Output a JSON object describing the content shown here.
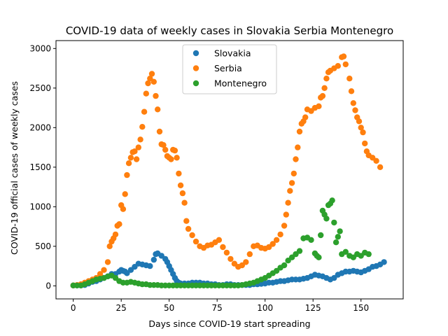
{
  "chart_data": {
    "type": "scatter",
    "title": "COVID-19 data of weekly cases in Slovakia Serbia Montenegro",
    "xlabel": "Days since COVID-19 start spreading",
    "ylabel": "COVID-19 official cases of weekly cases",
    "xlim": [
      -9,
      172
    ],
    "ylim": [
      -165,
      3100
    ],
    "xticks": [
      0,
      25,
      50,
      75,
      100,
      125,
      150
    ],
    "yticks": [
      0,
      500,
      1000,
      1500,
      2000,
      2500,
      3000
    ],
    "grid": false,
    "legend_position": "top-center",
    "series": [
      {
        "name": "Slovakia",
        "color": "#1f77b4",
        "points": [
          [
            0,
            5
          ],
          [
            2,
            5
          ],
          [
            4,
            5
          ],
          [
            6,
            10
          ],
          [
            8,
            30
          ],
          [
            10,
            50
          ],
          [
            12,
            60
          ],
          [
            14,
            80
          ],
          [
            16,
            100
          ],
          [
            18,
            120
          ],
          [
            20,
            150
          ],
          [
            22,
            150
          ],
          [
            24,
            180
          ],
          [
            25,
            200
          ],
          [
            26,
            190
          ],
          [
            27,
            180
          ],
          [
            28,
            160
          ],
          [
            30,
            200
          ],
          [
            32,
            240
          ],
          [
            34,
            280
          ],
          [
            36,
            270
          ],
          [
            38,
            260
          ],
          [
            40,
            250
          ],
          [
            42,
            330
          ],
          [
            43,
            400
          ],
          [
            44,
            410
          ],
          [
            46,
            380
          ],
          [
            48,
            340
          ],
          [
            49,
            300
          ],
          [
            50,
            250
          ],
          [
            51,
            200
          ],
          [
            52,
            150
          ],
          [
            53,
            100
          ],
          [
            54,
            60
          ],
          [
            55,
            40
          ],
          [
            56,
            30
          ],
          [
            58,
            30
          ],
          [
            60,
            30
          ],
          [
            62,
            40
          ],
          [
            64,
            40
          ],
          [
            66,
            40
          ],
          [
            68,
            30
          ],
          [
            70,
            30
          ],
          [
            72,
            20
          ],
          [
            74,
            20
          ],
          [
            76,
            10
          ],
          [
            78,
            10
          ],
          [
            80,
            20
          ],
          [
            82,
            20
          ],
          [
            84,
            10
          ],
          [
            86,
            10
          ],
          [
            88,
            10
          ],
          [
            90,
            10
          ],
          [
            92,
            10
          ],
          [
            94,
            20
          ],
          [
            96,
            20
          ],
          [
            98,
            25
          ],
          [
            100,
            30
          ],
          [
            102,
            40
          ],
          [
            104,
            40
          ],
          [
            106,
            50
          ],
          [
            108,
            60
          ],
          [
            110,
            60
          ],
          [
            112,
            70
          ],
          [
            114,
            80
          ],
          [
            116,
            80
          ],
          [
            118,
            80
          ],
          [
            120,
            90
          ],
          [
            122,
            100
          ],
          [
            124,
            120
          ],
          [
            126,
            140
          ],
          [
            128,
            130
          ],
          [
            130,
            120
          ],
          [
            132,
            100
          ],
          [
            134,
            80
          ],
          [
            136,
            100
          ],
          [
            138,
            140
          ],
          [
            140,
            160
          ],
          [
            142,
            180
          ],
          [
            144,
            180
          ],
          [
            146,
            190
          ],
          [
            148,
            180
          ],
          [
            150,
            170
          ],
          [
            152,
            190
          ],
          [
            154,
            210
          ],
          [
            156,
            240
          ],
          [
            158,
            250
          ],
          [
            160,
            270
          ],
          [
            162,
            300
          ]
        ]
      },
      {
        "name": "Serbia",
        "color": "#ff7f0e",
        "points": [
          [
            0,
            5
          ],
          [
            2,
            10
          ],
          [
            4,
            20
          ],
          [
            6,
            40
          ],
          [
            8,
            60
          ],
          [
            10,
            80
          ],
          [
            12,
            100
          ],
          [
            14,
            150
          ],
          [
            16,
            200
          ],
          [
            18,
            300
          ],
          [
            19,
            500
          ],
          [
            20,
            560
          ],
          [
            21,
            600
          ],
          [
            22,
            650
          ],
          [
            23,
            760
          ],
          [
            24,
            780
          ],
          [
            25,
            1020
          ],
          [
            26,
            970
          ],
          [
            27,
            1160
          ],
          [
            28,
            1400
          ],
          [
            29,
            1550
          ],
          [
            30,
            1620
          ],
          [
            31,
            1690
          ],
          [
            32,
            1700
          ],
          [
            33,
            1600
          ],
          [
            34,
            1750
          ],
          [
            35,
            1850
          ],
          [
            36,
            2010
          ],
          [
            37,
            2200
          ],
          [
            38,
            2430
          ],
          [
            39,
            2560
          ],
          [
            40,
            2620
          ],
          [
            41,
            2680
          ],
          [
            42,
            2580
          ],
          [
            43,
            2400
          ],
          [
            44,
            2230
          ],
          [
            45,
            1950
          ],
          [
            46,
            1790
          ],
          [
            47,
            1780
          ],
          [
            48,
            1720
          ],
          [
            49,
            1640
          ],
          [
            50,
            1620
          ],
          [
            51,
            1600
          ],
          [
            52,
            1720
          ],
          [
            53,
            1710
          ],
          [
            54,
            1620
          ],
          [
            55,
            1420
          ],
          [
            56,
            1270
          ],
          [
            57,
            1170
          ],
          [
            58,
            1050
          ],
          [
            59,
            820
          ],
          [
            60,
            720
          ],
          [
            62,
            640
          ],
          [
            64,
            560
          ],
          [
            66,
            500
          ],
          [
            68,
            480
          ],
          [
            70,
            510
          ],
          [
            72,
            520
          ],
          [
            74,
            550
          ],
          [
            76,
            580
          ],
          [
            78,
            490
          ],
          [
            80,
            420
          ],
          [
            82,
            340
          ],
          [
            84,
            280
          ],
          [
            86,
            240
          ],
          [
            88,
            260
          ],
          [
            90,
            300
          ],
          [
            92,
            400
          ],
          [
            94,
            500
          ],
          [
            96,
            510
          ],
          [
            98,
            480
          ],
          [
            100,
            470
          ],
          [
            102,
            490
          ],
          [
            104,
            530
          ],
          [
            106,
            580
          ],
          [
            108,
            650
          ],
          [
            110,
            760
          ],
          [
            111,
            900
          ],
          [
            112,
            1050
          ],
          [
            113,
            1200
          ],
          [
            114,
            1300
          ],
          [
            115,
            1420
          ],
          [
            116,
            1600
          ],
          [
            117,
            1750
          ],
          [
            118,
            1950
          ],
          [
            119,
            2050
          ],
          [
            120,
            2080
          ],
          [
            121,
            2130
          ],
          [
            122,
            2230
          ],
          [
            124,
            2210
          ],
          [
            126,
            2250
          ],
          [
            128,
            2270
          ],
          [
            129,
            2380
          ],
          [
            130,
            2400
          ],
          [
            131,
            2500
          ],
          [
            132,
            2620
          ],
          [
            133,
            2700
          ],
          [
            134,
            2720
          ],
          [
            136,
            2750
          ],
          [
            138,
            2780
          ],
          [
            140,
            2890
          ],
          [
            141,
            2900
          ],
          [
            142,
            2800
          ],
          [
            144,
            2620
          ],
          [
            145,
            2460
          ],
          [
            146,
            2310
          ],
          [
            147,
            2220
          ],
          [
            148,
            2130
          ],
          [
            149,
            2080
          ],
          [
            150,
            2000
          ],
          [
            151,
            1940
          ],
          [
            152,
            1800
          ],
          [
            153,
            1700
          ],
          [
            154,
            1650
          ],
          [
            156,
            1620
          ],
          [
            158,
            1580
          ],
          [
            160,
            1500
          ]
        ]
      },
      {
        "name": "Montenegro",
        "color": "#2ca02c",
        "points": [
          [
            0,
            5
          ],
          [
            2,
            5
          ],
          [
            4,
            5
          ],
          [
            6,
            20
          ],
          [
            8,
            40
          ],
          [
            10,
            60
          ],
          [
            12,
            80
          ],
          [
            14,
            90
          ],
          [
            16,
            100
          ],
          [
            18,
            120
          ],
          [
            20,
            130
          ],
          [
            22,
            100
          ],
          [
            24,
            60
          ],
          [
            26,
            40
          ],
          [
            28,
            40
          ],
          [
            30,
            50
          ],
          [
            32,
            40
          ],
          [
            34,
            30
          ],
          [
            36,
            20
          ],
          [
            38,
            20
          ],
          [
            40,
            10
          ],
          [
            42,
            10
          ],
          [
            44,
            10
          ],
          [
            46,
            5
          ],
          [
            48,
            5
          ],
          [
            50,
            5
          ],
          [
            52,
            5
          ],
          [
            54,
            5
          ],
          [
            56,
            5
          ],
          [
            58,
            5
          ],
          [
            60,
            5
          ],
          [
            62,
            5
          ],
          [
            64,
            5
          ],
          [
            66,
            5
          ],
          [
            68,
            5
          ],
          [
            70,
            5
          ],
          [
            72,
            5
          ],
          [
            74,
            5
          ],
          [
            76,
            5
          ],
          [
            78,
            5
          ],
          [
            80,
            5
          ],
          [
            82,
            5
          ],
          [
            84,
            5
          ],
          [
            86,
            5
          ],
          [
            88,
            10
          ],
          [
            90,
            20
          ],
          [
            92,
            30
          ],
          [
            94,
            40
          ],
          [
            96,
            60
          ],
          [
            98,
            80
          ],
          [
            100,
            100
          ],
          [
            102,
            130
          ],
          [
            104,
            160
          ],
          [
            106,
            190
          ],
          [
            108,
            230
          ],
          [
            110,
            260
          ],
          [
            112,
            320
          ],
          [
            114,
            360
          ],
          [
            116,
            400
          ],
          [
            118,
            440
          ],
          [
            120,
            600
          ],
          [
            122,
            610
          ],
          [
            124,
            580
          ],
          [
            126,
            410
          ],
          [
            127,
            380
          ],
          [
            128,
            360
          ],
          [
            129,
            640
          ],
          [
            130,
            950
          ],
          [
            131,
            900
          ],
          [
            132,
            850
          ],
          [
            133,
            1020
          ],
          [
            134,
            1040
          ],
          [
            135,
            1080
          ],
          [
            136,
            800
          ],
          [
            137,
            550
          ],
          [
            138,
            620
          ],
          [
            139,
            690
          ],
          [
            140,
            400
          ],
          [
            142,
            430
          ],
          [
            144,
            380
          ],
          [
            146,
            360
          ],
          [
            148,
            400
          ],
          [
            150,
            380
          ],
          [
            152,
            420
          ],
          [
            154,
            400
          ]
        ]
      }
    ]
  }
}
